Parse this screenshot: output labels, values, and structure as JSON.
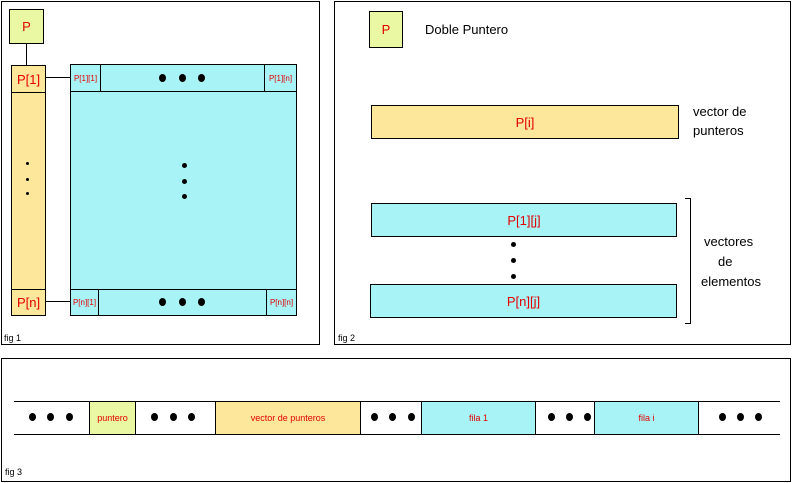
{
  "fig1": {
    "label": "fig 1",
    "pointer_box": "P",
    "row_first": "P[1]",
    "row_last": "P[n]",
    "cell_11": "P[1][1]",
    "cell_1n": "P[1][n]",
    "cell_n1": "P[n][1]",
    "cell_nn": "P[n][n]"
  },
  "fig2": {
    "label": "fig 2",
    "pointer_box": "P",
    "title": "Doble Puntero",
    "vector_box": "P[i]",
    "vector_label_line1": "vector de",
    "vector_label_line2": "punteros",
    "row_first": "P[1][j]",
    "row_last": "P[n][j]",
    "elements_label_line1": "vectores",
    "elements_label_line2": "de",
    "elements_label_line3": "elementos"
  },
  "fig3": {
    "label": "fig 3",
    "segments": [
      "puntero",
      "vector de punteros",
      "fila 1",
      "fila i"
    ]
  },
  "colors": {
    "pointer_green": "#eaf7a3",
    "pointer_yellow": "#fde79a",
    "element_cyan": "#a8f3f6",
    "label_red": "#e30000"
  }
}
